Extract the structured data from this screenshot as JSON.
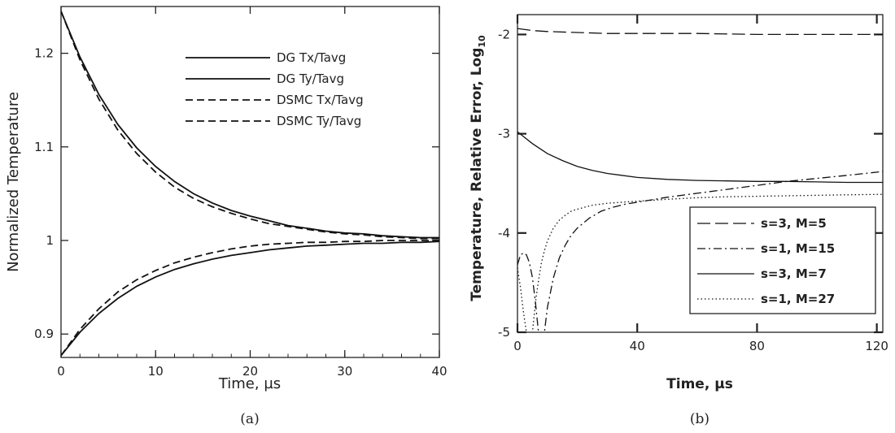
{
  "chart_data": [
    {
      "type": "line",
      "id": "a",
      "caption": "(a)",
      "xlabel": "Time, µs",
      "ylabel": "Normalized Temperature",
      "xlim": [
        0,
        40
      ],
      "ylim": [
        0.875,
        1.25
      ],
      "xticks": [
        0,
        10,
        20,
        30,
        40
      ],
      "xtick_labels": [
        "0",
        "10",
        "20",
        "30",
        "40"
      ],
      "yticks": [
        0.9,
        1.0,
        1.1,
        1.2
      ],
      "ytick_labels": [
        "0.9",
        "1",
        "1.1",
        "1.2"
      ],
      "grid": false,
      "legend_position": "top-right",
      "series": [
        {
          "name": "DG Tx/Tavg",
          "style": "solid",
          "x": [
            0,
            2,
            4,
            6,
            8,
            10,
            12,
            14,
            16,
            18,
            20,
            22,
            24,
            26,
            28,
            30,
            32,
            34,
            36,
            38,
            40
          ],
          "y": [
            1.245,
            1.196,
            1.156,
            1.124,
            1.099,
            1.079,
            1.063,
            1.05,
            1.04,
            1.032,
            1.026,
            1.021,
            1.016,
            1.013,
            1.01,
            1.008,
            1.007,
            1.005,
            1.004,
            1.003,
            1.003
          ]
        },
        {
          "name": "DG Ty/Tavg",
          "style": "solid",
          "x": [
            0,
            2,
            4,
            6,
            8,
            10,
            12,
            14,
            16,
            18,
            20,
            22,
            24,
            26,
            28,
            30,
            32,
            34,
            36,
            38,
            40
          ],
          "y": [
            0.877,
            0.902,
            0.922,
            0.938,
            0.951,
            0.961,
            0.969,
            0.975,
            0.98,
            0.984,
            0.987,
            0.99,
            0.992,
            0.994,
            0.995,
            0.996,
            0.997,
            0.997,
            0.998,
            0.998,
            0.999
          ]
        },
        {
          "name": "DSMC Tx/Tavg",
          "style": "dashed",
          "x": [
            0,
            2,
            4,
            6,
            8,
            10,
            12,
            14,
            16,
            18,
            20,
            22,
            24,
            26,
            28,
            30,
            32,
            34,
            36,
            38,
            40
          ],
          "y": [
            1.245,
            1.193,
            1.151,
            1.118,
            1.093,
            1.073,
            1.057,
            1.045,
            1.036,
            1.029,
            1.023,
            1.018,
            1.015,
            1.012,
            1.009,
            1.007,
            1.006,
            1.004,
            1.003,
            1.002,
            1.002
          ]
        },
        {
          "name": "DSMC Ty/Tavg",
          "style": "dashed",
          "x": [
            0,
            2,
            4,
            6,
            8,
            10,
            12,
            14,
            16,
            18,
            20,
            22,
            24,
            26,
            28,
            30,
            32,
            34,
            36,
            38,
            40
          ],
          "y": [
            0.877,
            0.905,
            0.927,
            0.945,
            0.958,
            0.968,
            0.976,
            0.982,
            0.987,
            0.991,
            0.994,
            0.996,
            0.997,
            0.998,
            0.998,
            0.999,
            0.999,
            1.0,
            1.0,
            1.0,
            1.0
          ]
        }
      ]
    },
    {
      "type": "line",
      "id": "b",
      "caption": "(b)",
      "xlabel": "Time, µs",
      "ylabel": "Temperature, Relative Error, Log",
      "ylabel_subscript": "10",
      "xlim": [
        0,
        122
      ],
      "ylim": [
        -5,
        -1.8
      ],
      "xticks": [
        0,
        40,
        80,
        120
      ],
      "xtick_labels": [
        "0",
        "40",
        "80",
        "120"
      ],
      "yticks": [
        -5,
        -4,
        -3,
        -2
      ],
      "ytick_labels": [
        "-5",
        "-4",
        "-3",
        "-2"
      ],
      "grid": false,
      "legend_position": "bottom-right",
      "series": [
        {
          "name": "s=3, M=5",
          "style": "longdash",
          "x": [
            0,
            5,
            10,
            20,
            30,
            40,
            60,
            80,
            100,
            122
          ],
          "y": [
            -1.94,
            -1.96,
            -1.97,
            -1.98,
            -1.99,
            -1.99,
            -1.99,
            -2.0,
            -2.0,
            -2.0
          ]
        },
        {
          "name": "s=1, M=15",
          "style": "dashdot",
          "x": [
            0,
            1,
            2,
            3,
            4,
            5,
            6,
            7,
            8,
            9,
            10,
            11,
            12,
            14,
            16,
            18,
            20,
            24,
            28,
            32,
            36,
            40,
            50,
            60,
            70,
            80,
            90,
            100,
            110,
            122
          ],
          "y": [
            -4.32,
            -4.22,
            -4.2,
            -4.22,
            -4.3,
            -4.45,
            -4.7,
            -5.0,
            -5.3,
            -5.0,
            -4.75,
            -4.6,
            -4.45,
            -4.25,
            -4.12,
            -4.02,
            -3.95,
            -3.85,
            -3.78,
            -3.74,
            -3.71,
            -3.69,
            -3.64,
            -3.6,
            -3.56,
            -3.52,
            -3.48,
            -3.45,
            -3.42,
            -3.38
          ]
        },
        {
          "name": "s=3, M=7",
          "style": "solid",
          "x": [
            0,
            5,
            10,
            15,
            20,
            25,
            30,
            40,
            50,
            60,
            70,
            80,
            90,
            100,
            110,
            122
          ],
          "y": [
            -2.98,
            -3.1,
            -3.2,
            -3.27,
            -3.33,
            -3.37,
            -3.4,
            -3.44,
            -3.46,
            -3.47,
            -3.475,
            -3.48,
            -3.48,
            -3.485,
            -3.49,
            -3.49
          ]
        },
        {
          "name": "s=1, M=27",
          "style": "dotted",
          "x": [
            0,
            1,
            2,
            3,
            4,
            5,
            6,
            7,
            8,
            9,
            10,
            12,
            14,
            16,
            18,
            20,
            25,
            30,
            35,
            40,
            50,
            60,
            70,
            80,
            90,
            100,
            110,
            122
          ],
          "y": [
            -4.35,
            -4.55,
            -4.8,
            -5.0,
            -5.3,
            -5.0,
            -4.7,
            -4.48,
            -4.3,
            -4.18,
            -4.08,
            -3.95,
            -3.87,
            -3.82,
            -3.78,
            -3.76,
            -3.72,
            -3.7,
            -3.69,
            -3.68,
            -3.66,
            -3.645,
            -3.635,
            -3.63,
            -3.625,
            -3.62,
            -3.615,
            -3.61
          ]
        }
      ]
    }
  ]
}
